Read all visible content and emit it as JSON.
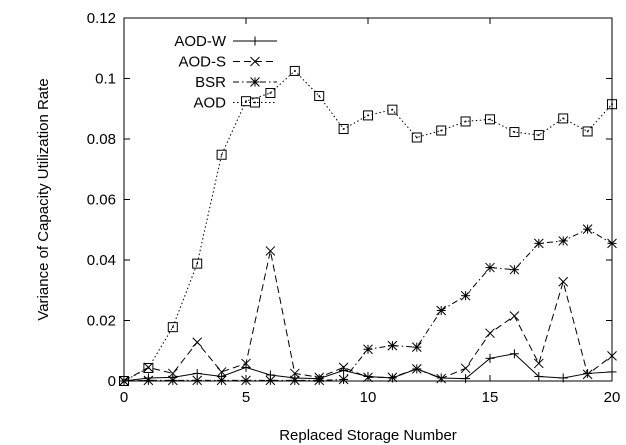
{
  "chart_data": {
    "type": "line",
    "title": "",
    "xlabel": "Replaced Storage Number",
    "ylabel": "Variance of Capacity Utilization Rate",
    "xlim": [
      0,
      20
    ],
    "ylim": [
      0,
      0.12
    ],
    "xticks": [
      "0",
      "5",
      "10",
      "15",
      "20"
    ],
    "yticks": [
      "0",
      "0.02",
      "0.04",
      "0.06",
      "0.08",
      "0.1",
      "0.12"
    ],
    "x": [
      0,
      1,
      2,
      3,
      4,
      5,
      6,
      7,
      8,
      9,
      10,
      11,
      12,
      13,
      14,
      15,
      16,
      17,
      18,
      19,
      20
    ],
    "legend_position": "top-left",
    "grid": false,
    "series": [
      {
        "name": "AOD-W",
        "line_style": "solid",
        "marker": "plus",
        "values": [
          0,
          0.001,
          0.0012,
          0.0025,
          0.0015,
          0.0045,
          0.002,
          0.001,
          0.0008,
          0.0035,
          0.0015,
          0.001,
          0.004,
          0.001,
          0.0008,
          0.0075,
          0.009,
          0.0015,
          0.001,
          0.0025,
          0.003
        ]
      },
      {
        "name": "AOD-S",
        "line_style": "dashed",
        "marker": "x",
        "values": [
          0,
          0.0045,
          0.0025,
          0.0128,
          0.003,
          0.0058,
          0.043,
          0.0025,
          0.0012,
          0.0045,
          0.0012,
          0.0012,
          0.004,
          0.0008,
          0.0042,
          0.0158,
          0.0215,
          0.0058,
          0.0328,
          0.0022,
          0.0083
        ]
      },
      {
        "name": "BSR",
        "line_style": "dashdot",
        "marker": "star",
        "values": [
          0,
          0.0002,
          0.0002,
          0.0002,
          0.0002,
          0.0002,
          0.0002,
          0.0002,
          0.0002,
          0.0005,
          0.0105,
          0.0117,
          0.0112,
          0.0233,
          0.0282,
          0.0375,
          0.0368,
          0.0455,
          0.0463,
          0.0502,
          0.0455
        ]
      },
      {
        "name": "AOD",
        "line_style": "dotted",
        "marker": "square",
        "values": [
          0,
          0.0043,
          0.0178,
          0.0388,
          0.0748,
          0.0925,
          0.0952,
          0.1025,
          0.0942,
          0.0833,
          0.0878,
          0.0897,
          0.0805,
          0.0828,
          0.0858,
          0.0865,
          0.0823,
          0.0813,
          0.0868,
          0.0825,
          0.0915
        ]
      }
    ]
  }
}
